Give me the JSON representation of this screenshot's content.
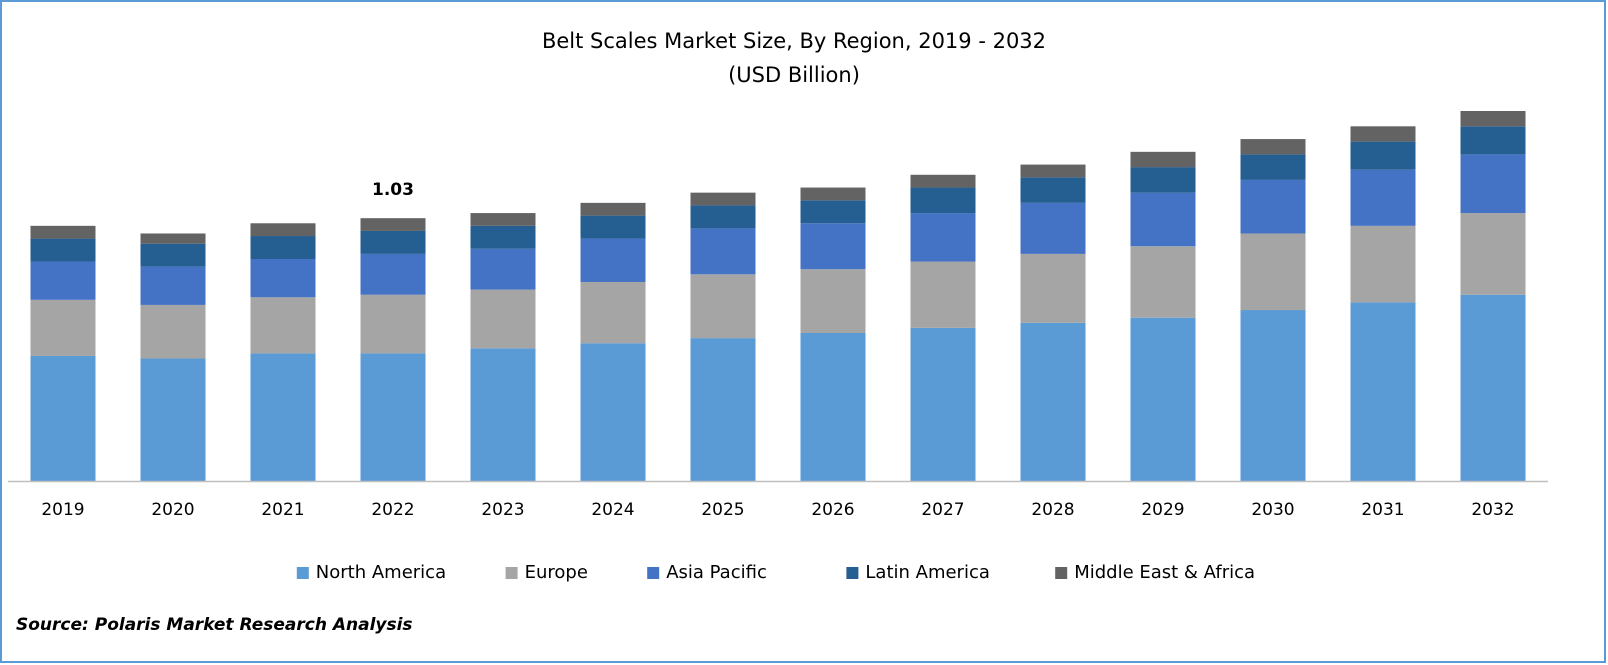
{
  "chart_data": {
    "type": "stacked_bar",
    "title": "Belt Scales Market Size, By Region, 2019 - 2032",
    "subtitle": "(USD Billion)",
    "categories": [
      "2019",
      "2020",
      "2021",
      "2022",
      "2023",
      "2024",
      "2025",
      "2026",
      "2027",
      "2028",
      "2029",
      "2030",
      "2031",
      "2032"
    ],
    "series": [
      {
        "name": "North America",
        "color": "#5b9bd5",
        "values": [
          0.49,
          0.48,
          0.5,
          0.5,
          0.52,
          0.54,
          0.56,
          0.58,
          0.6,
          0.62,
          0.64,
          0.67,
          0.7,
          0.73
        ]
      },
      {
        "name": "Europe",
        "color": "#a5a5a5",
        "values": [
          0.22,
          0.21,
          0.22,
          0.23,
          0.23,
          0.24,
          0.25,
          0.25,
          0.26,
          0.27,
          0.28,
          0.3,
          0.3,
          0.32
        ]
      },
      {
        "name": "Asia Pacific",
        "color": "#4472c4",
        "values": [
          0.15,
          0.15,
          0.15,
          0.16,
          0.16,
          0.17,
          0.18,
          0.18,
          0.19,
          0.2,
          0.21,
          0.21,
          0.22,
          0.23
        ]
      },
      {
        "name": "Latin America",
        "color": "#255e91",
        "values": [
          0.09,
          0.09,
          0.09,
          0.09,
          0.09,
          0.09,
          0.09,
          0.09,
          0.1,
          0.1,
          0.1,
          0.1,
          0.11,
          0.11
        ]
      },
      {
        "name": "Middle East & Africa",
        "color": "#636363",
        "values": [
          0.05,
          0.04,
          0.05,
          0.05,
          0.05,
          0.05,
          0.05,
          0.05,
          0.05,
          0.05,
          0.06,
          0.06,
          0.06,
          0.06
        ]
      }
    ],
    "total_label": {
      "category": "2022",
      "value": 1.03
    },
    "legend": "bottom",
    "source": "Source: Polaris Market Research Analysis"
  }
}
